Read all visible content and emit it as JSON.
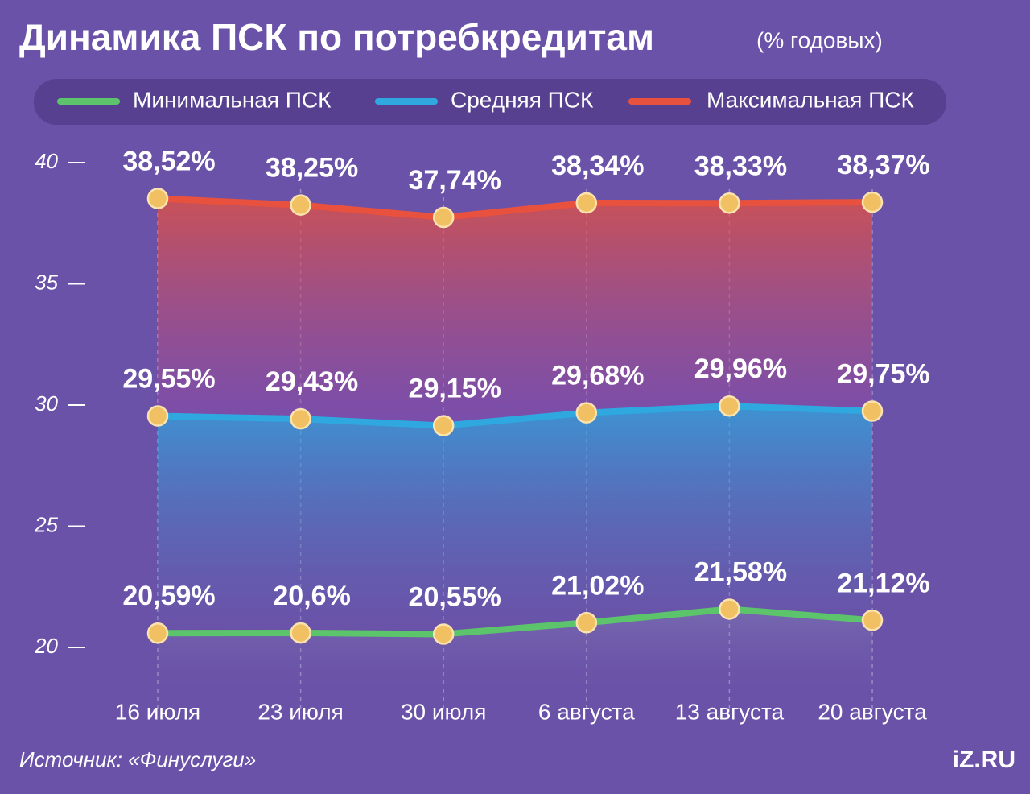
{
  "chart_data": {
    "type": "line",
    "title": "Динамика ПСК по потребкредитам",
    "subtitle": "(% годовых)",
    "categories": [
      "16 июля",
      "23 июля",
      "30 июля",
      "6 августа",
      "13 августа",
      "20 августа"
    ],
    "series": [
      {
        "name": "Минимальная ПСК",
        "color": "#5cc46a",
        "values": [
          20.59,
          20.6,
          20.55,
          21.02,
          21.58,
          21.12
        ],
        "value_labels": [
          "20,59%",
          "20,6%",
          "20,55%",
          "21,02%",
          "21,58%",
          "21,12%"
        ]
      },
      {
        "name": "Средняя ПСК",
        "color": "#2fa8e0",
        "values": [
          29.55,
          29.43,
          29.15,
          29.68,
          29.96,
          29.75
        ],
        "value_labels": [
          "29,55%",
          "29,43%",
          "29,15%",
          "29,68%",
          "29,96%",
          "29,75%"
        ]
      },
      {
        "name": "Максимальная ПСК",
        "color": "#e8513d",
        "values": [
          38.52,
          38.25,
          37.74,
          38.34,
          38.33,
          38.37
        ],
        "value_labels": [
          "38,52%",
          "38,25%",
          "37,74%",
          "38,34%",
          "38,33%",
          "38,37%"
        ]
      }
    ],
    "ylim": [
      20,
      40
    ],
    "yticks": [
      20,
      25,
      30,
      35,
      40
    ],
    "source": "Источник: «Финуслуги»",
    "logo": "iZ.RU"
  }
}
